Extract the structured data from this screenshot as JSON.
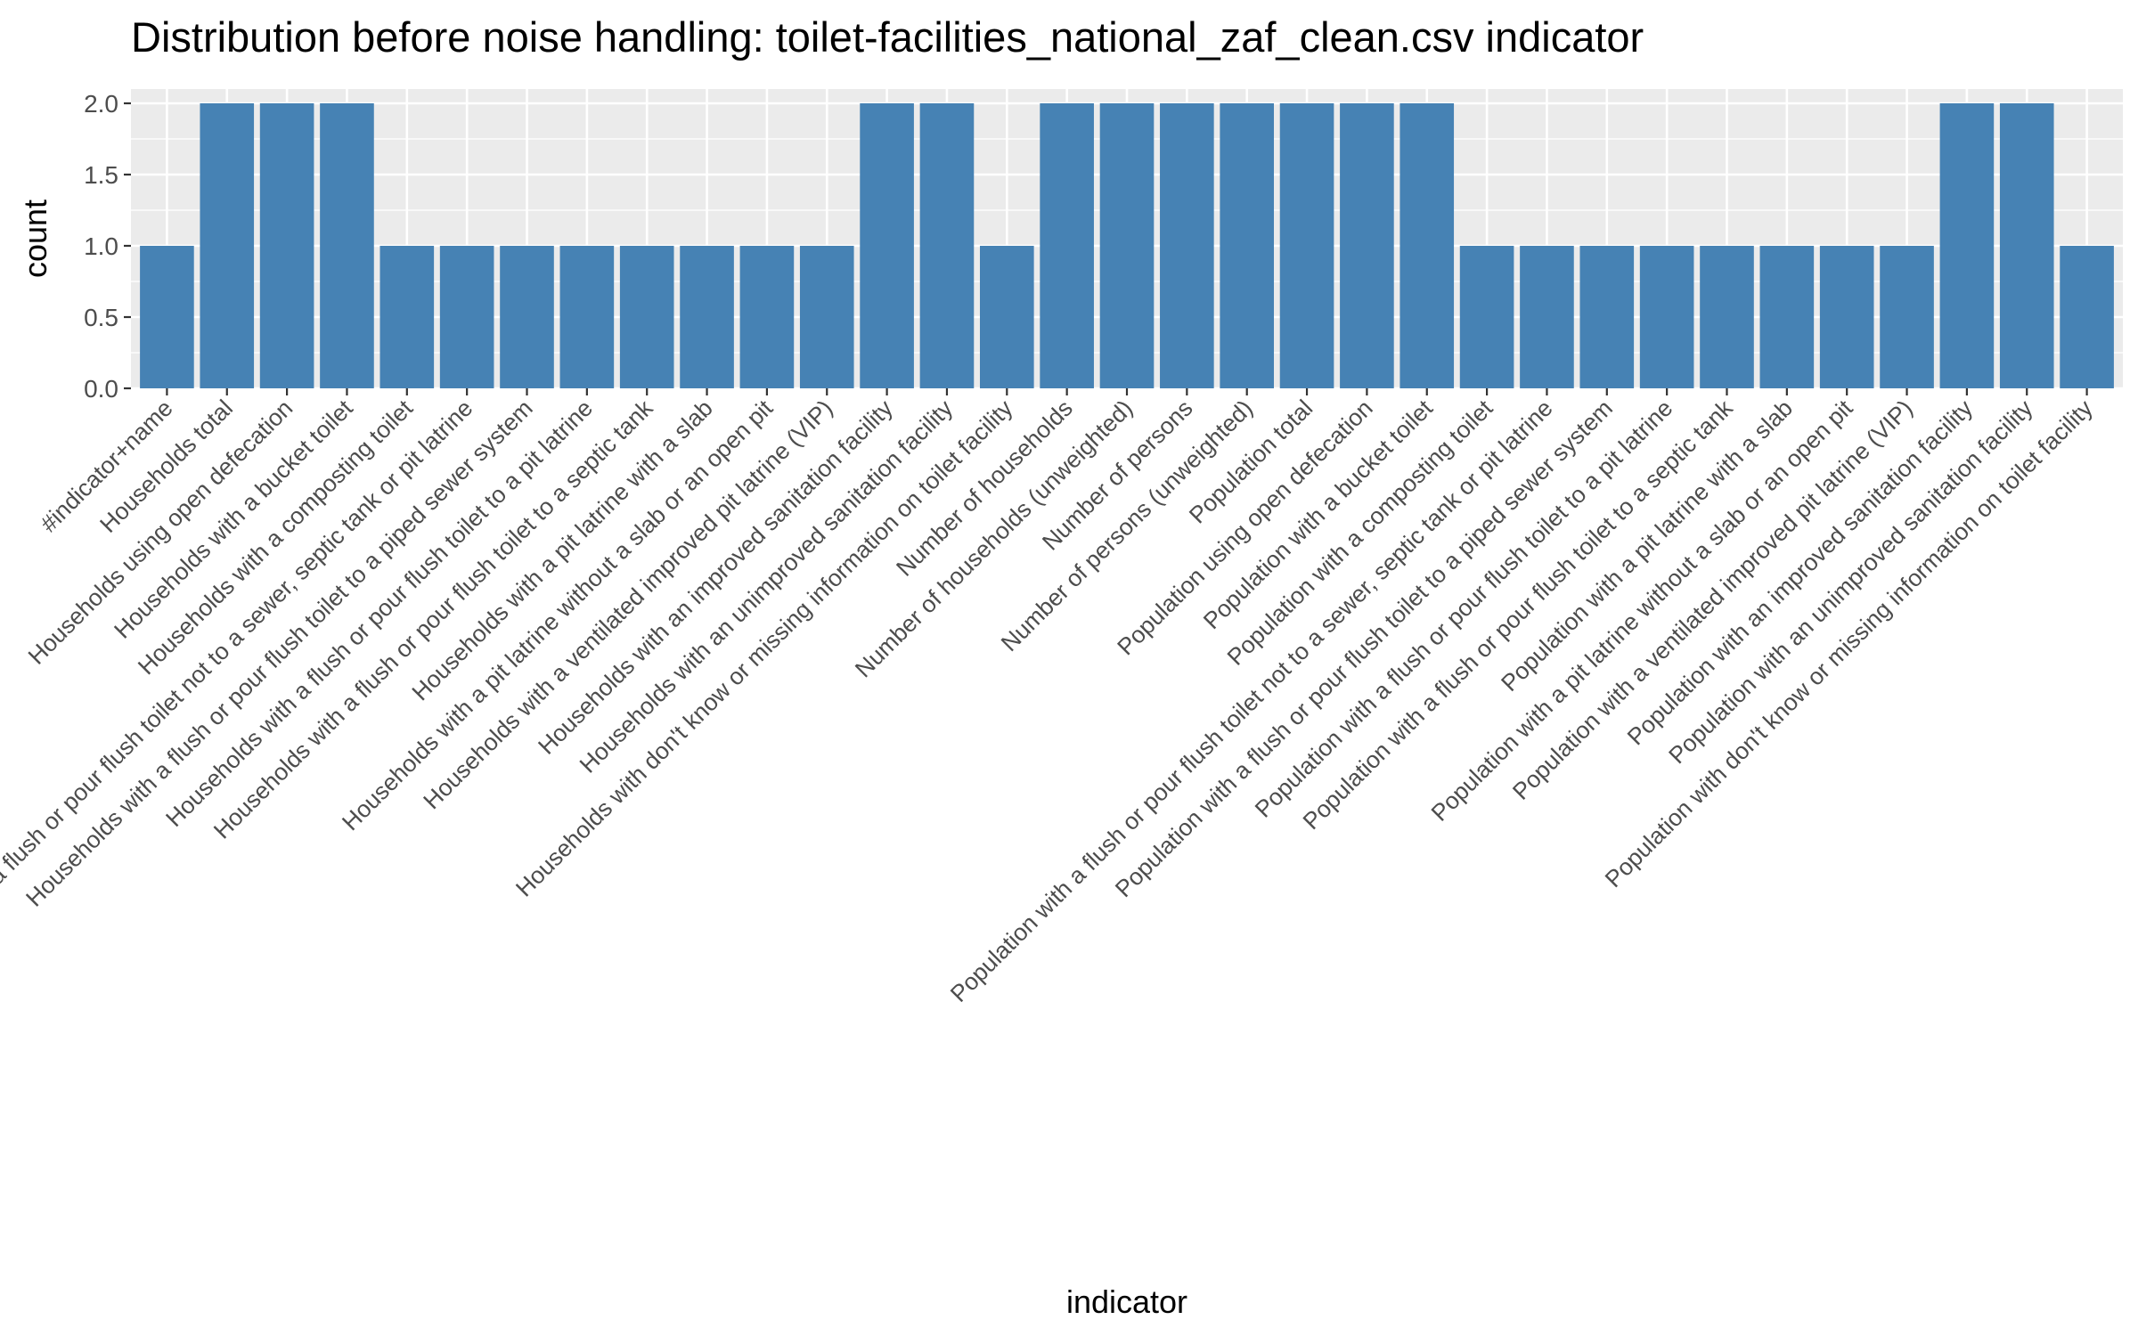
{
  "chart_data": {
    "type": "bar",
    "title": "Distribution before noise handling: toilet-facilities_national_zaf_clean.csv indicator",
    "xlabel": "indicator",
    "ylabel": "count",
    "ylim": [
      0,
      2.1
    ],
    "yticks": [
      "0.0",
      "0.5",
      "1.0",
      "1.5",
      "2.0"
    ],
    "grid": true,
    "bar_color": "#4682B4",
    "panel_color": "#EBEBEB",
    "categories": [
      "#indicator+name",
      "Households total",
      "Households using open defecation",
      "Households with a bucket toilet",
      "Households with a composting toilet",
      "Households with a flush or pour flush toilet not to a sewer, septic tank or pit latrine",
      "Households with a flush or pour flush toilet to a piped sewer system",
      "Households with a flush or pour flush toilet to a pit latrine",
      "Households with a flush or pour flush toilet to a septic tank",
      "Households with a pit latrine with a slab",
      "Households with a pit latrine without a slab or an open pit",
      "Households with a ventilated improved pit latrine (VIP)",
      "Households with an improved sanitation facility",
      "Households with an unimproved sanitation facility",
      "Households with don't know or missing information on toilet facility",
      "Number of households",
      "Number of households (unweighted)",
      "Number of persons",
      "Number of persons (unweighted)",
      "Population total",
      "Population using open defecation",
      "Population with a bucket toilet",
      "Population with a composting toilet",
      "Population with a flush or pour flush toilet not to a sewer, septic tank or pit latrine",
      "Population with a flush or pour flush toilet to a piped sewer system",
      "Population with a flush or pour flush toilet to a pit latrine",
      "Population with a flush or pour flush toilet to a septic tank",
      "Population with a pit latrine with a slab",
      "Population with a pit latrine without a slab or an open pit",
      "Population with a ventilated improved pit latrine (VIP)",
      "Population with an improved sanitation facility",
      "Population with an unimproved sanitation facility",
      "Population with don't know or missing information on toilet facility"
    ],
    "values": [
      1,
      2,
      2,
      2,
      1,
      1,
      1,
      1,
      1,
      1,
      1,
      1,
      2,
      2,
      1,
      2,
      2,
      2,
      2,
      2,
      2,
      2,
      1,
      1,
      1,
      1,
      1,
      1,
      1,
      1,
      2,
      2,
      1
    ]
  }
}
